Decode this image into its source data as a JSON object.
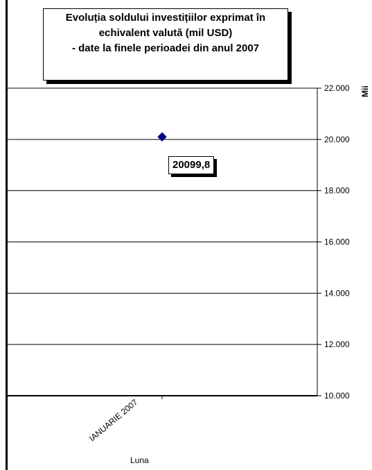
{
  "chart_data": {
    "type": "scatter",
    "title_lines": [
      "Evoluția soldului investițiilor exprimat în",
      "echivalent valută (mil USD)",
      "- date la finele perioadei din anul 2007"
    ],
    "categories": [
      "IANUARIE 2007"
    ],
    "series": [
      {
        "values": [
          20099.8
        ],
        "data_labels": [
          "20099,8"
        ]
      }
    ],
    "xlabel": "Luna",
    "ylabel": "Mii",
    "ylim": [
      10000,
      22000
    ],
    "yticks": [
      "10.000",
      "12.000",
      "14.000",
      "16.000",
      "18.000",
      "20.000",
      "22.000"
    ],
    "ytick_values": [
      10000,
      12000,
      14000,
      16000,
      18000,
      20000,
      22000
    ],
    "y_axis_side": "right",
    "grid": true,
    "marker_color": "#000080"
  }
}
